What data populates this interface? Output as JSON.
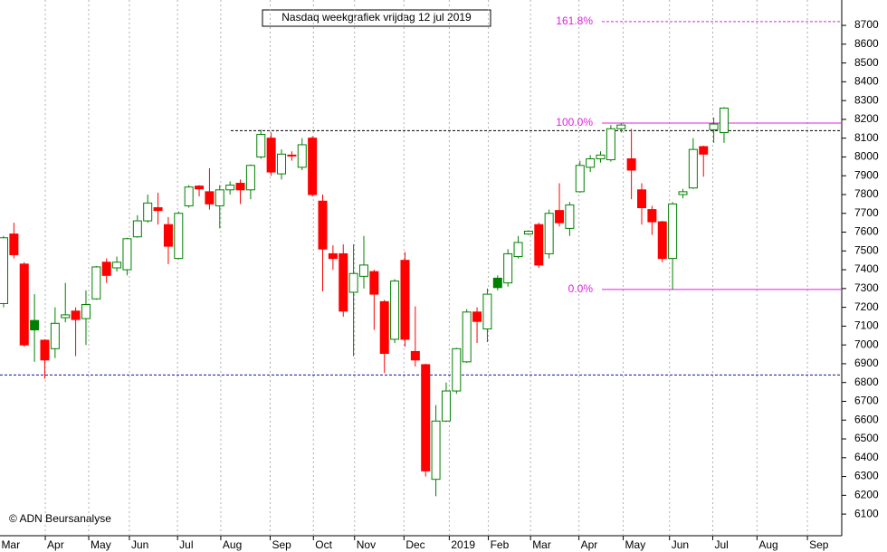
{
  "chart_data": {
    "type": "candlestick",
    "title": "Nasdaq weekgrafiek vrijdag 12 jul 2019",
    "credit": "© ADN Beursanalyse",
    "open": [
      7220,
      7590,
      7430,
      7130,
      7025,
      6980,
      7145,
      7180,
      7140,
      7245,
      7440,
      7410,
      7400,
      7575,
      7660,
      7730,
      7640,
      7460,
      7740,
      7845,
      7815,
      7740,
      7825,
      7860,
      7825,
      8000,
      8100,
      7910,
      8010,
      7945,
      8100,
      7765,
      7485,
      7485,
      7280,
      7365,
      7390,
      7230,
      7030,
      7450,
      6965,
      6895,
      6285,
      6595,
      6755,
      6910,
      7175,
      7085,
      7355,
      7330,
      7470,
      7590,
      7640,
      7485,
      7715,
      7620,
      7815,
      7945,
      7990,
      7985,
      8150,
      7990,
      7825,
      7720,
      7655,
      7460,
      7800,
      7835,
      8055,
      8145,
      8130
    ],
    "high": [
      7580,
      7650,
      7440,
      7270,
      7030,
      7200,
      7330,
      7200,
      7290,
      7420,
      7460,
      7470,
      7570,
      7690,
      7800,
      7810,
      7680,
      7710,
      7850,
      7850,
      7940,
      7850,
      7870,
      7880,
      7960,
      8145,
      8130,
      8040,
      8030,
      8100,
      8110,
      7800,
      7530,
      7535,
      7535,
      7580,
      7400,
      7240,
      7350,
      7495,
      7205,
      6900,
      6680,
      6800,
      6985,
      7190,
      7200,
      7300,
      7370,
      7510,
      7580,
      7610,
      7650,
      7720,
      7860,
      7760,
      7980,
      8010,
      8030,
      8170,
      8180,
      8150,
      7860,
      7740,
      7660,
      7760,
      7830,
      8100,
      8060,
      8210,
      8265
    ],
    "low": [
      7200,
      7460,
      6990,
      6910,
      6820,
      6930,
      7120,
      6940,
      7000,
      7240,
      7330,
      7390,
      7370,
      7570,
      7650,
      7640,
      7430,
      7455,
      7730,
      7790,
      7720,
      7620,
      7800,
      7750,
      7775,
      7990,
      7900,
      7880,
      7980,
      7930,
      7790,
      7285,
      7400,
      7150,
      6940,
      7300,
      7080,
      6850,
      7010,
      6990,
      6885,
      6300,
      6195,
      6590,
      6740,
      6905,
      7010,
      7015,
      7290,
      7310,
      7460,
      7585,
      7410,
      7460,
      7630,
      7580,
      7810,
      7920,
      7970,
      7975,
      8130,
      7775,
      7640,
      7585,
      7440,
      7295,
      7780,
      7830,
      7895,
      8075,
      8075
    ],
    "close": [
      7570,
      7480,
      7000,
      7080,
      6920,
      7115,
      7160,
      7135,
      7215,
      7415,
      7370,
      7440,
      7565,
      7660,
      7755,
      7715,
      7525,
      7700,
      7840,
      7830,
      7750,
      7825,
      7850,
      7825,
      7955,
      8120,
      7920,
      8015,
      8005,
      8065,
      7800,
      7510,
      7460,
      7180,
      7380,
      7425,
      7270,
      6955,
      7340,
      7030,
      6920,
      6330,
      6595,
      6755,
      6980,
      7175,
      7125,
      7270,
      7305,
      7485,
      7545,
      7605,
      7425,
      7700,
      7650,
      7745,
      7955,
      7990,
      8010,
      8150,
      8170,
      7930,
      7730,
      7655,
      7460,
      7750,
      7815,
      8040,
      8015,
      8175,
      8260
    ],
    "up_color": "#008000",
    "down_color": "#ff0000",
    "ylim": [
      5985,
      8835
    ],
    "yticks": [
      6100,
      6200,
      6300,
      6400,
      6500,
      6600,
      6700,
      6800,
      6900,
      7000,
      7100,
      7200,
      7300,
      7400,
      7500,
      7600,
      7700,
      7800,
      7900,
      8000,
      8100,
      8200,
      8300,
      8400,
      8500,
      8600,
      8700
    ],
    "xticks": [
      {
        "value": -0.4,
        "label": "Mar"
      },
      {
        "value": 4.05,
        "label": "Apr"
      },
      {
        "value": 8.27,
        "label": "May"
      },
      {
        "value": 12.22,
        "label": "Jun"
      },
      {
        "value": 16.9,
        "label": "Jul"
      },
      {
        "value": 21.1,
        "label": "Aug"
      },
      {
        "value": 25.9,
        "label": "Sep"
      },
      {
        "value": 30.1,
        "label": "Oct"
      },
      {
        "value": 34.1,
        "label": "Nov"
      },
      {
        "value": 38.9,
        "label": "Dec"
      },
      {
        "value": 43.3,
        "label": "2019"
      },
      {
        "value": 47.1,
        "label": "Feb"
      },
      {
        "value": 51.2,
        "label": "Mar"
      },
      {
        "value": 55.9,
        "label": "Apr"
      },
      {
        "value": 60.2,
        "label": "May"
      },
      {
        "value": 64.7,
        "label": "Jun"
      },
      {
        "value": 68.9,
        "label": "Jul"
      },
      {
        "value": 73.2,
        "label": "Aug"
      },
      {
        "value": 78.1,
        "label": "Sep"
      }
    ],
    "fib_levels": [
      {
        "value": 8720,
        "label": "161.8%"
      },
      {
        "value": 8180,
        "label": "100.0%"
      },
      {
        "value": 7295,
        "label": "0.0%"
      }
    ],
    "fib_color": "#e020e0",
    "support_lines": [
      {
        "value": 8140,
        "color": "#000000"
      },
      {
        "value": 6840,
        "color": "#1010a0"
      }
    ]
  }
}
